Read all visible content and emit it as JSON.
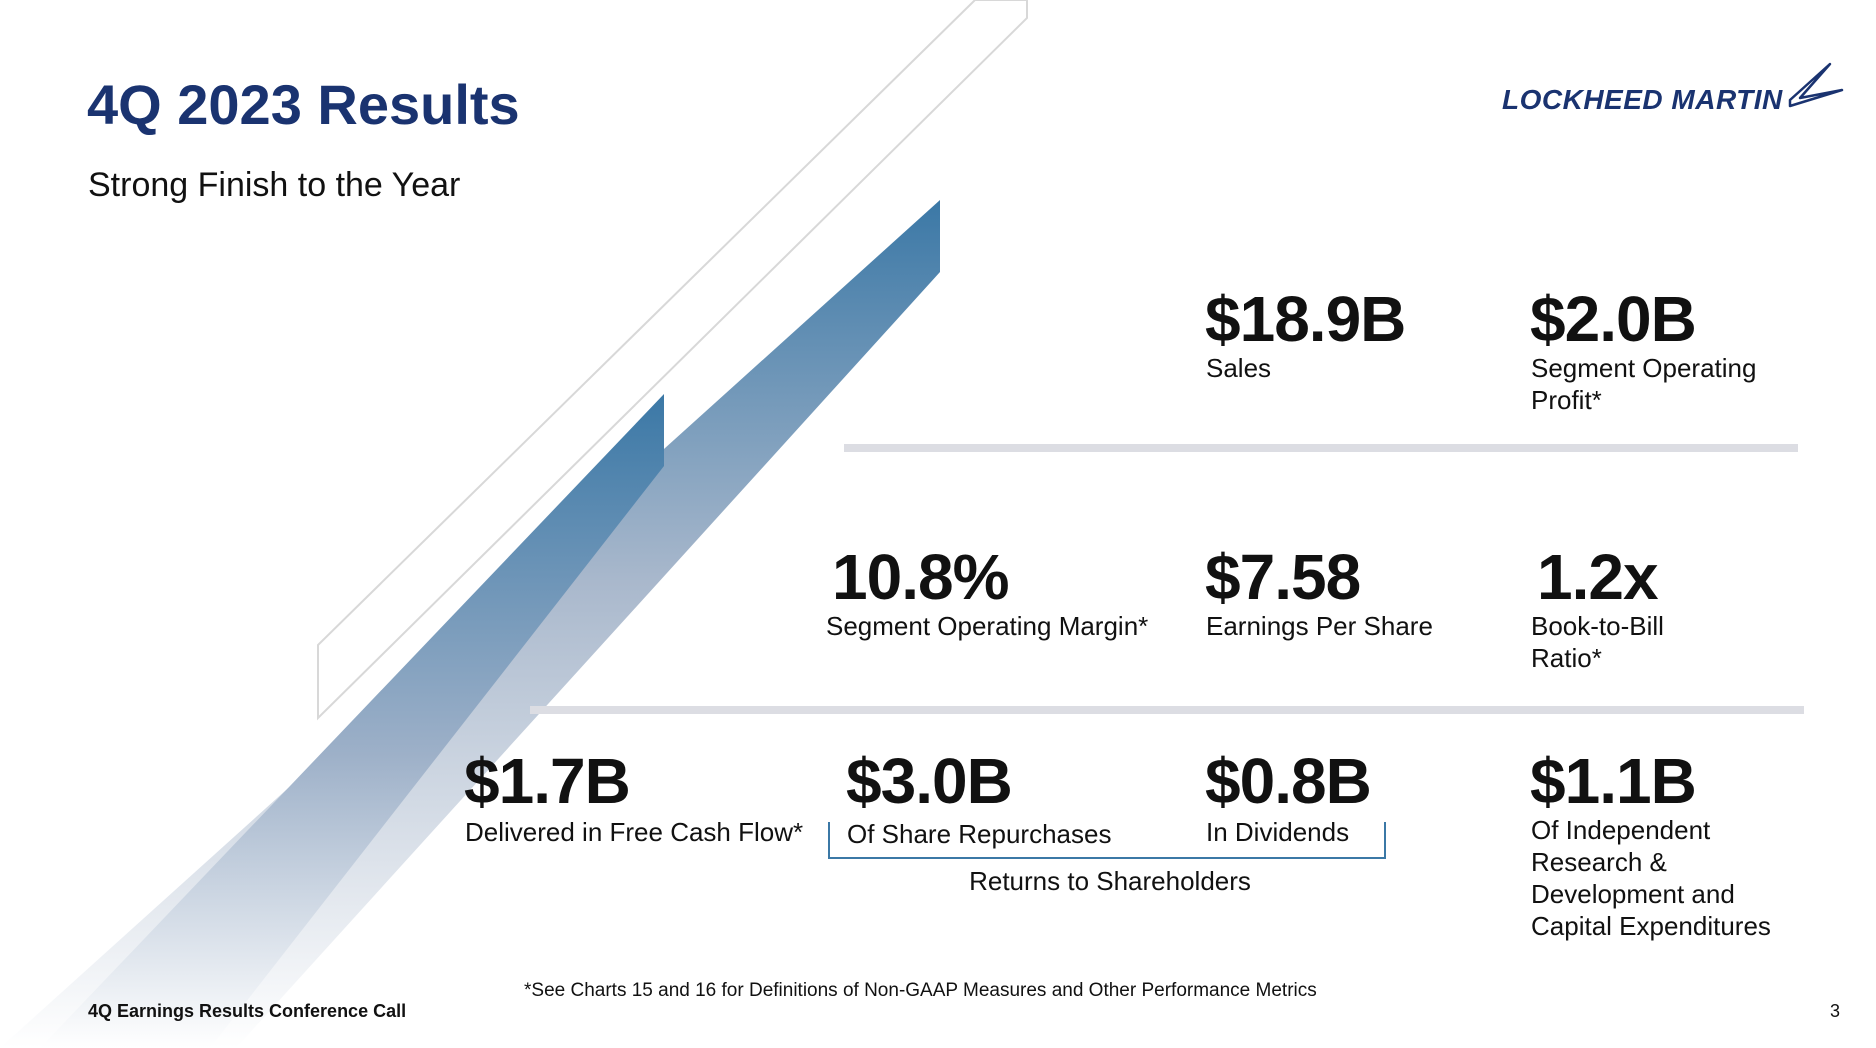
{
  "slide": {
    "title": "4Q 2023 Results",
    "subtitle": "Strong Finish to the Year",
    "logo_text": "LOCKHEED MARTIN",
    "accent_color": "#1a3370",
    "stripe_color": "#3b78a6"
  },
  "metrics": {
    "sales": {
      "value": "$18.9B",
      "label": "Sales"
    },
    "segment_profit": {
      "value": "$2.0B",
      "label": "Segment Operating\nProfit*"
    },
    "segment_margin": {
      "value": "10.8%",
      "label": "Segment Operating Margin*"
    },
    "eps": {
      "value": "$7.58",
      "label": "Earnings Per Share"
    },
    "book_to_bill": {
      "value": "1.2x",
      "label": "Book-to-Bill\nRatio*"
    },
    "free_cash_flow": {
      "value": "$1.7B",
      "label": "Delivered in Free Cash Flow*"
    },
    "share_repurchases": {
      "value": "$3.0B",
      "label": "Of Share Repurchases"
    },
    "dividends": {
      "value": "$0.8B",
      "label": "In Dividends"
    },
    "ird_capex": {
      "value": "$1.1B",
      "label": "Of Independent\nResearch &\nDevelopment and\nCapital Expenditures"
    }
  },
  "bracket_caption": "Returns to Shareholders",
  "footnote": "*See Charts 15 and 16 for Definitions of Non-GAAP Measures and Other Performance Metrics",
  "footer": {
    "left": "4Q Earnings Results Conference Call",
    "page_number": "3"
  }
}
